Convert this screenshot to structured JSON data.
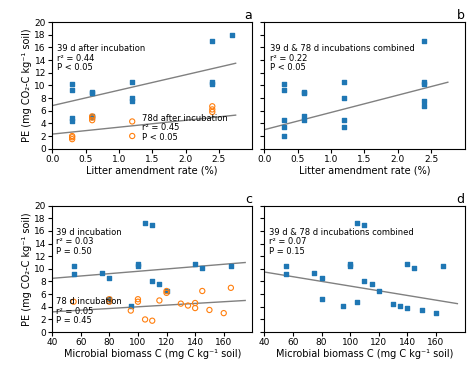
{
  "chart_data": [
    {
      "type": "scatter",
      "title": "a",
      "xlabel": "Litter amendment rate (%)",
      "ylabel": "PE (mg CO₂-C kg⁻¹ soil)",
      "xlim": [
        0.0,
        3.0
      ],
      "ylim": [
        0,
        20
      ],
      "xticks": [
        {
          "value": 0.0,
          "label": "0.0"
        },
        0.5,
        {
          "value": 1.0,
          "label": "1.0"
        },
        1.5,
        {
          "value": 2.0,
          "label": "2.0"
        },
        2.5
      ],
      "yticks": [
        0,
        2,
        4,
        6,
        8,
        10,
        12,
        14,
        16,
        18,
        20
      ],
      "series": [
        {
          "type": "scatter",
          "marker": "square",
          "x": [
            0.3,
            0.3,
            0.3,
            0.3,
            0.6,
            0.6,
            0.6,
            0.6,
            1.2,
            1.2,
            1.2,
            2.4,
            2.4,
            2.4,
            2.7
          ],
          "values": [
            10.2,
            9.2,
            4.8,
            4.4,
            9.0,
            8.8,
            5.1,
            5.0,
            10.6,
            8.0,
            7.5,
            17.0,
            10.5,
            10.2,
            18.0
          ]
        },
        {
          "type": "scatter",
          "marker": "circle",
          "x": [
            0.3,
            0.3,
            0.3,
            0.6,
            0.6,
            0.6,
            1.2,
            1.2,
            2.4,
            2.4,
            2.4
          ],
          "values": [
            2.0,
            1.8,
            1.5,
            5.1,
            4.9,
            4.5,
            4.3,
            2.0,
            6.7,
            6.2,
            5.8
          ]
        },
        {
          "type": "line",
          "color": "gray",
          "x": [
            0.0,
            2.75
          ],
          "values": [
            6.8,
            13.5
          ]
        },
        {
          "type": "line",
          "color": "gray",
          "x": [
            0.0,
            2.75
          ],
          "values": [
            2.3,
            5.3
          ]
        }
      ],
      "annotations": [
        {
          "text": "39 d after incubation",
          "x": 0.08,
          "y": 16.5
        },
        {
          "text": "r² = 0.44",
          "x": 0.08,
          "y": 15.0
        },
        {
          "text": "P < 0.05",
          "x": 0.08,
          "y": 13.5
        },
        {
          "text": "78d after incubation",
          "x": 1.35,
          "y": 5.5
        },
        {
          "text": "r² = 0.45",
          "x": 1.35,
          "y": 4.0
        },
        {
          "text": "P < 0.05",
          "x": 1.35,
          "y": 2.5
        }
      ]
    },
    {
      "type": "scatter",
      "title": "b",
      "xlabel": "Litter amendment rate (%)",
      "xlim": [
        0.0,
        3.0
      ],
      "ylim": [
        0,
        20
      ],
      "xticks": [
        {
          "value": 0.0,
          "label": "0.0"
        },
        0.5,
        {
          "value": 1.0,
          "label": "1.0"
        },
        1.5,
        {
          "value": 2.0,
          "label": "2.0"
        },
        2.5
      ],
      "yticks": [
        0,
        2,
        4,
        6,
        8,
        10,
        12,
        14,
        16,
        18,
        20
      ],
      "tick_labels": "x",
      "series": [
        {
          "type": "scatter",
          "marker": "square",
          "x": [
            0.3,
            0.3,
            0.3,
            0.3,
            0.3,
            0.6,
            0.6,
            0.6,
            0.6,
            1.2,
            1.2,
            1.2,
            1.2,
            2.4,
            2.4,
            2.4,
            2.4,
            2.4
          ],
          "values": [
            10.2,
            9.2,
            4.5,
            3.5,
            2.0,
            9.0,
            8.8,
            5.1,
            4.5,
            10.6,
            8.0,
            4.5,
            3.5,
            17.0,
            10.5,
            10.2,
            7.5,
            6.8
          ]
        },
        {
          "type": "line",
          "color": "gray",
          "x": [
            0.0,
            2.75
          ],
          "values": [
            3.0,
            10.5
          ]
        }
      ],
      "annotations": [
        {
          "text": "39 d & 78 d incubations combined",
          "x": 0.08,
          "y": 16.5
        },
        {
          "text": "r² = 0.22",
          "x": 0.08,
          "y": 15.0
        },
        {
          "text": "P < 0.05",
          "x": 0.08,
          "y": 13.5
        }
      ]
    },
    {
      "type": "scatter",
      "title": "c",
      "xlabel": "Microbial biomass C (mg C kg⁻¹ soil)",
      "ylabel": "PE (mg CO₂-C kg⁻¹ soil)",
      "xlim": [
        40,
        180
      ],
      "ylim": [
        0,
        20
      ],
      "xticks": [
        40,
        60,
        80,
        100,
        120,
        140,
        160
      ],
      "yticks": [
        0,
        2,
        4,
        6,
        8,
        10,
        12,
        14,
        16,
        18,
        20
      ],
      "series": [
        {
          "type": "scatter",
          "marker": "square",
          "x": [
            55,
            55,
            75,
            80,
            80,
            95,
            100,
            100,
            105,
            110,
            110,
            115,
            120,
            140,
            145,
            165
          ],
          "values": [
            10.4,
            9.2,
            9.3,
            8.6,
            5.2,
            4.2,
            10.8,
            10.5,
            17.2,
            17.0,
            8.0,
            7.6,
            6.5,
            10.7,
            10.2,
            10.5
          ]
        },
        {
          "type": "scatter",
          "marker": "circle",
          "x": [
            55,
            80,
            80,
            95,
            100,
            100,
            105,
            110,
            115,
            120,
            120,
            130,
            135,
            140,
            140,
            145,
            150,
            160,
            165
          ],
          "values": [
            4.8,
            5.2,
            4.8,
            3.4,
            5.2,
            4.8,
            2.0,
            1.8,
            5.0,
            6.5,
            6.2,
            4.5,
            4.2,
            4.6,
            3.8,
            6.5,
            3.5,
            3.0,
            7.0
          ]
        },
        {
          "type": "line",
          "color": "gray",
          "x": [
            40,
            175
          ],
          "values": [
            8.5,
            11.0
          ]
        },
        {
          "type": "line",
          "color": "gray",
          "x": [
            40,
            175
          ],
          "values": [
            3.2,
            5.0
          ]
        }
      ],
      "annotations": [
        {
          "text": "39 d incubation",
          "x": 43,
          "y": 16.5
        },
        {
          "text": "r² = 0.03",
          "x": 43,
          "y": 15.0
        },
        {
          "text": "P = 0.50",
          "x": 43,
          "y": 13.5
        },
        {
          "text": "78 d incubation",
          "x": 43,
          "y": 5.5
        },
        {
          "text": "r² = 0.05",
          "x": 43,
          "y": 4.0
        },
        {
          "text": "P = 0.45",
          "x": 43,
          "y": 2.5
        }
      ]
    },
    {
      "type": "scatter",
      "title": "d",
      "xlabel": "Microbial biomass C (mg C kg⁻¹ soil)",
      "xlim": [
        40,
        180
      ],
      "ylim": [
        0,
        20
      ],
      "xticks": [
        40,
        60,
        80,
        100,
        120,
        140,
        160
      ],
      "yticks": [
        0,
        2,
        4,
        6,
        8,
        10,
        12,
        14,
        16,
        18,
        20
      ],
      "tick_labels": "x",
      "series": [
        {
          "type": "scatter",
          "marker": "square",
          "x": [
            55,
            55,
            75,
            80,
            80,
            95,
            100,
            100,
            105,
            105,
            110,
            110,
            115,
            120,
            130,
            135,
            140,
            140,
            145,
            150,
            160,
            165
          ],
          "values": [
            10.4,
            9.2,
            9.3,
            8.6,
            5.2,
            4.2,
            10.8,
            10.5,
            17.2,
            4.8,
            17.0,
            8.0,
            7.6,
            6.5,
            4.5,
            4.2,
            10.7,
            3.8,
            10.2,
            3.5,
            3.0,
            10.5
          ]
        },
        {
          "type": "line",
          "color": "gray",
          "x": [
            40,
            175
          ],
          "values": [
            9.5,
            4.5
          ]
        }
      ],
      "annotations": [
        {
          "text": "39 d & 78 d incubations combined",
          "x": 43,
          "y": 16.5
        },
        {
          "text": "r² = 0.07",
          "x": 43,
          "y": 15.0
        },
        {
          "text": "P = 0.15",
          "x": 43,
          "y": 13.5
        }
      ]
    }
  ]
}
